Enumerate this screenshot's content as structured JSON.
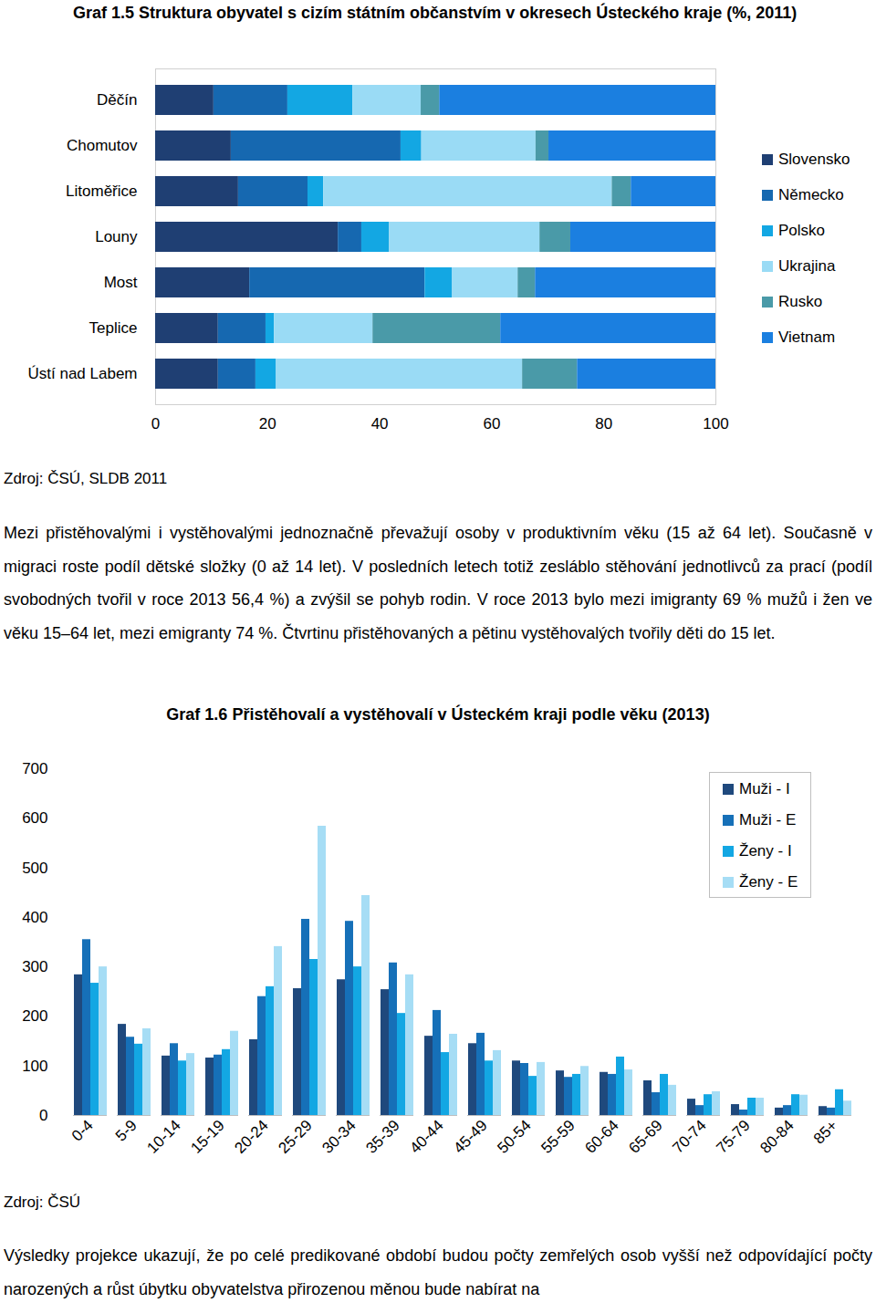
{
  "chart_data": [
    {
      "type": "bar",
      "title": "Graf 1.5 Struktura obyvatel s cizím státním občanstvím v okresech Ústeckého kraje (%, 2011)",
      "caption": "Zdroj: ČSÚ, SLDB 2011",
      "orientation": "horizontal",
      "stacked": true,
      "legend": "right",
      "grid": false,
      "categories": [
        "Děčín",
        "Chomutov",
        "Litoměřice",
        "Louny",
        "Most",
        "Teplice",
        "Ústí nad Labem"
      ],
      "series": [
        {
          "name": "Slovensko",
          "color": "#1f3f73",
          "values": [
            10.4,
            13.5,
            14.8,
            32.6,
            16.8,
            11.2,
            11.2
          ]
        },
        {
          "name": "Německo",
          "color": "#1668b0",
          "values": [
            13.2,
            30.3,
            12.4,
            4.2,
            31.3,
            8.5,
            6.7
          ]
        },
        {
          "name": "Polsko",
          "color": "#13a7e3",
          "values": [
            11.6,
            3.7,
            2.8,
            4.9,
            4.9,
            1.5,
            3.6
          ]
        },
        {
          "name": "Ukrajina",
          "color": "#9adbf5",
          "values": [
            12.2,
            20.4,
            51.5,
            26.9,
            11.7,
            17.6,
            44.0
          ]
        },
        {
          "name": "Rusko",
          "color": "#4a9aa8",
          "values": [
            3.3,
            2.3,
            3.4,
            5.5,
            3.1,
            22.8,
            9.8
          ]
        },
        {
          "name": "Vietnam",
          "color": "#1b7fe0",
          "values": [
            49.3,
            29.8,
            15.1,
            25.9,
            32.2,
            38.4,
            24.7
          ]
        }
      ],
      "xlim": [
        0,
        100
      ],
      "xticks": [
        0,
        20,
        40,
        60,
        80,
        100
      ]
    },
    {
      "type": "bar",
      "title": "Graf 1.6 Přistěhovalí a vystěhovalí v Ústeckém kraji podle věku (2013)",
      "caption": "Zdroj: ČSÚ",
      "legend": "top-right",
      "grid": false,
      "categories": [
        "0-4",
        "5-9",
        "10-14",
        "15-19",
        "20-24",
        "25-29",
        "30-34",
        "35-39",
        "40-44",
        "45-49",
        "50-54",
        "55-59",
        "60-64",
        "65-69",
        "70-74",
        "75-79",
        "80-84",
        "85+"
      ],
      "series": [
        {
          "name": "Muži - I",
          "color": "#1f497d",
          "values": [
            284,
            184,
            120,
            116,
            153,
            256,
            274,
            254,
            160,
            145,
            110,
            90,
            87,
            70,
            33,
            22,
            15,
            18
          ]
        },
        {
          "name": "Muži - E",
          "color": "#1670b8",
          "values": [
            355,
            158,
            145,
            122,
            240,
            396,
            392,
            308,
            212,
            166,
            105,
            77,
            83,
            46,
            20,
            11,
            20,
            15
          ]
        },
        {
          "name": "Ženy - I",
          "color": "#13a7e3",
          "values": [
            267,
            144,
            110,
            133,
            260,
            315,
            300,
            206,
            127,
            110,
            79,
            83,
            118,
            83,
            42,
            35,
            42,
            52
          ]
        },
        {
          "name": "Ženy - E",
          "color": "#a6ddf5",
          "values": [
            300,
            175,
            125,
            170,
            341,
            584,
            444,
            284,
            164,
            131,
            107,
            99,
            92,
            61,
            48,
            35,
            41,
            29
          ]
        }
      ],
      "ylim": [
        0,
        700
      ],
      "yticks": [
        0,
        100,
        200,
        300,
        400,
        500,
        600,
        700
      ]
    }
  ],
  "paragraphs": [
    "Mezi přistěhovalými i vystěhovalými jednoznačně převažují osoby v produktivním věku (15 až 64 let). Současně v migraci roste podíl dětské složky (0 až 14 let). V posledních letech totiž zesláblo stěhování jednotlivců za prací (podíl svobodných tvořil v roce 2013 56,4 %) a zvýšil se pohyb rodin. V roce 2013 bylo mezi imigranty 69 % mužů i žen ve věku 15–64 let, mezi emigranty 74 %. Čtvrtinu přistěhovaných a pětinu vystěhovalých tvořily děti do 15 let.",
    "Výsledky projekce ukazují, že po celé predikované období budou počty zemřelých osob vyšší než odpovídající počty narozených a růst úbytku obyvatelstva přirozenou měnou bude nabírat na"
  ]
}
